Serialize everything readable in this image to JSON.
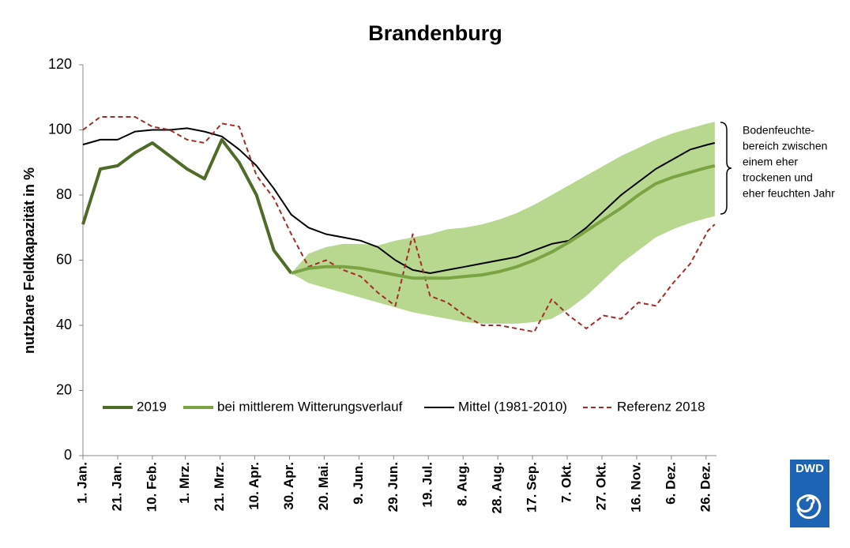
{
  "chart_data": {
    "type": "line",
    "title": "Brandenburg",
    "y_label": "nutzbare Feldkapazität in %",
    "xlim": [
      1,
      366
    ],
    "xticks": [
      {
        "value": 1,
        "label": "1. Jan."
      },
      {
        "value": 21,
        "label": "21. Jan."
      },
      {
        "value": 41,
        "label": "10. Feb."
      },
      {
        "value": 60,
        "label": "1. Mrz."
      },
      {
        "value": 80,
        "label": "21. Mrz."
      },
      {
        "value": 100,
        "label": "10. Apr."
      },
      {
        "value": 120,
        "label": "30. Apr."
      },
      {
        "value": 140,
        "label": "20. Mai."
      },
      {
        "value": 160,
        "label": "9. Jun."
      },
      {
        "value": 180,
        "label": "29. Jun."
      },
      {
        "value": 200,
        "label": "19. Jul."
      },
      {
        "value": 220,
        "label": "8. Aug."
      },
      {
        "value": 240,
        "label": "28. Aug."
      },
      {
        "value": 260,
        "label": "17. Sep."
      },
      {
        "value": 280,
        "label": "7. Okt."
      },
      {
        "value": 300,
        "label": "27. Okt."
      },
      {
        "value": 320,
        "label": "16. Nov."
      },
      {
        "value": 340,
        "label": "6. Dez."
      },
      {
        "value": 360,
        "label": "26. Dez."
      }
    ],
    "ylim": [
      0,
      120
    ],
    "yticks": [
      0,
      20,
      40,
      60,
      80,
      100,
      120
    ],
    "grid": false,
    "x": [
      1,
      11,
      21,
      31,
      41,
      51,
      61,
      71,
      81,
      91,
      101,
      111,
      121,
      131,
      141,
      151,
      161,
      171,
      181,
      191,
      201,
      211,
      221,
      231,
      241,
      251,
      261,
      271,
      281,
      291,
      301,
      311,
      321,
      331,
      341,
      351,
      361,
      365
    ],
    "band": {
      "color": "#b9d88f",
      "upper": [
        null,
        null,
        null,
        null,
        null,
        null,
        null,
        null,
        null,
        null,
        null,
        null,
        56,
        62,
        64,
        65,
        65,
        64.5,
        66,
        67,
        68,
        69.5,
        70,
        71,
        72.5,
        74.5,
        77,
        80,
        83,
        86,
        89,
        92,
        94.5,
        97,
        99,
        100.5,
        102,
        102.5
      ],
      "lower": [
        null,
        null,
        null,
        null,
        null,
        null,
        null,
        null,
        null,
        null,
        null,
        null,
        56,
        53,
        51.5,
        50,
        48.5,
        47,
        45.5,
        44,
        43,
        42,
        41,
        40.5,
        40.5,
        40.5,
        41,
        42,
        45,
        49,
        54,
        59,
        63,
        67,
        69.5,
        71.5,
        73,
        73.5
      ]
    },
    "series": [
      {
        "name": "2019",
        "color": "#4f6b28",
        "width": 4,
        "dash": false,
        "values": [
          71,
          88,
          89,
          93,
          96,
          92,
          88,
          85,
          97,
          90,
          80,
          63,
          56,
          null,
          null,
          null,
          null,
          null,
          null,
          null,
          null,
          null,
          null,
          null,
          null,
          null,
          null,
          null,
          null,
          null,
          null,
          null,
          null,
          null,
          null,
          null,
          null,
          null
        ]
      },
      {
        "name": "bei mittlerem Witterungsverlauf",
        "color": "#7aa444",
        "width": 4,
        "dash": false,
        "values": [
          null,
          null,
          null,
          null,
          null,
          null,
          null,
          null,
          null,
          null,
          null,
          null,
          56,
          57.5,
          58,
          58,
          57.5,
          56.5,
          55.5,
          54.5,
          54.5,
          54.5,
          55,
          55.5,
          56.5,
          58,
          60,
          62.5,
          65.5,
          69,
          72.5,
          76,
          80,
          83.5,
          85.5,
          87,
          88.5,
          89
        ]
      },
      {
        "name": "Mittel (1981-2010)",
        "color": "#000000",
        "width": 2,
        "dash": false,
        "values": [
          95.5,
          97,
          97,
          99.5,
          100,
          100,
          100.5,
          99.5,
          98,
          94,
          89,
          82,
          74,
          70,
          68,
          67,
          66,
          64,
          60,
          57,
          56,
          57,
          58,
          59,
          60,
          61,
          63,
          65,
          66,
          70,
          75,
          80,
          84,
          88,
          91,
          94,
          95.5,
          96
        ]
      },
      {
        "name": "Referenz 2018",
        "color": "#a52a2a",
        "width": 2,
        "dash": true,
        "values": [
          100,
          104,
          104,
          104,
          101,
          100,
          97,
          96,
          102,
          101,
          86,
          79,
          68,
          58,
          60,
          57,
          55,
          50,
          46,
          68,
          49,
          47,
          43,
          40,
          40,
          39,
          38,
          48,
          43,
          39,
          43,
          42,
          47,
          46,
          53,
          59,
          69,
          71
        ]
      }
    ],
    "annotation": [
      "Bodenfeuchte-",
      "bereich zwischen",
      "einem eher",
      "trockenen und",
      "eher feuchten Jahr"
    ],
    "logo": "DWD"
  }
}
